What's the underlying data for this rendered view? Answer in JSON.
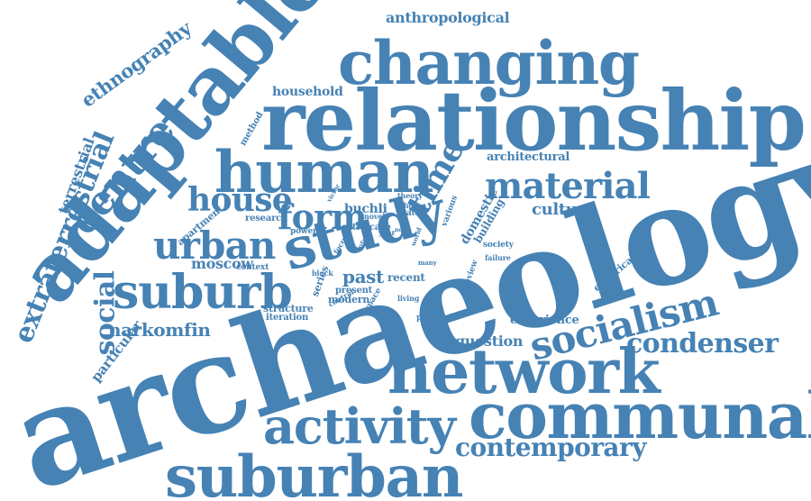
{
  "accent_color": "#4682b4",
  "background_color": "#ffffff",
  "words": [
    "archaeology",
    "relationship",
    "changing",
    "adaptable",
    "human",
    "study",
    "communal",
    "network",
    "suburban",
    "suburb",
    "activity",
    "socialism",
    "urban",
    "house",
    "material",
    "form",
    "contemporary",
    "condenser",
    "time",
    "centre",
    "social",
    "extraterrestrial",
    "narkomfin",
    "moscow",
    "ethnography",
    "anthropological",
    "terrestrial",
    "household",
    "culture",
    "question",
    "experience",
    "past",
    "particular",
    "architectural",
    "domestic",
    "building",
    "apartment",
    "buchli",
    "research",
    "method",
    "structure",
    "iteration",
    "modern",
    "recent",
    "present",
    "series",
    "empirical",
    "political",
    "space",
    "living",
    "context",
    "power",
    "extra case",
    "society",
    "failure",
    "various",
    "whole",
    "state",
    "theory",
    "novel",
    "victor",
    "year",
    "world",
    "review",
    "many",
    "central",
    "block",
    "focus",
    "life",
    "new"
  ]
}
